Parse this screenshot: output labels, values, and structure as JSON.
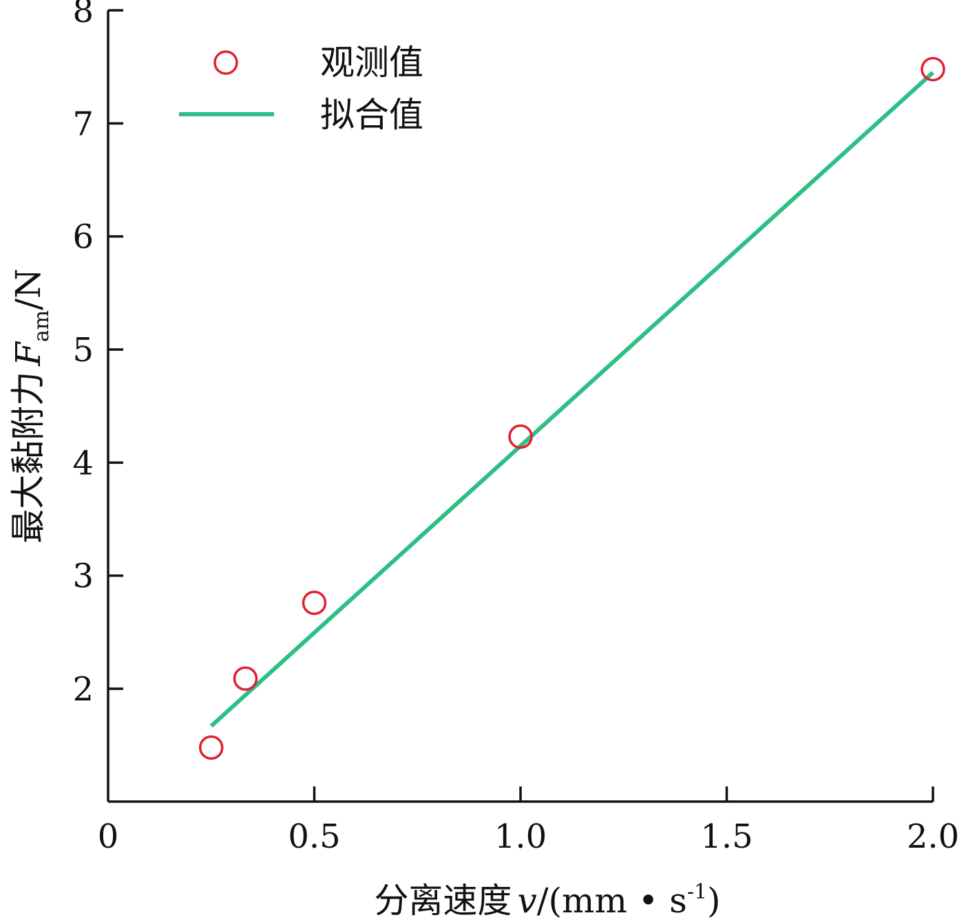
{
  "chart_data": {
    "type": "scatter",
    "xlabel_prefix": "分离速度",
    "xlabel_var": "v",
    "xlabel_unit_open": "/(mm • s",
    "xlabel_unit_sup": "-1",
    "xlabel_unit_close": ")",
    "ylabel_prefix": "最大黏附力",
    "ylabel_var": "F",
    "ylabel_sub": "am",
    "ylabel_unit": "/N",
    "xlim": [
      0,
      2.0
    ],
    "ylim": [
      1,
      8
    ],
    "xticks": [
      0,
      0.5,
      1.0,
      1.5,
      2.0
    ],
    "xtick_labels": [
      "0",
      "0.5",
      "1.0",
      "1.5",
      "2.0"
    ],
    "yticks": [
      2,
      3,
      4,
      5,
      6,
      7,
      8
    ],
    "ytick_labels": [
      "2",
      "3",
      "4",
      "5",
      "6",
      "7",
      "8"
    ],
    "series": [
      {
        "name": "观测值",
        "kind": "scatter",
        "color": "#e02030",
        "x": [
          0.25,
          0.333,
          0.5,
          1.0,
          2.0
        ],
        "y": [
          1.48,
          2.09,
          2.76,
          4.23,
          7.48
        ]
      },
      {
        "name": "拟合值",
        "kind": "line",
        "color": "#2dbf85",
        "x": [
          0.25,
          2.0
        ],
        "y": [
          1.67,
          7.45
        ]
      }
    ],
    "legend_position": "top-left",
    "grid": false
  }
}
